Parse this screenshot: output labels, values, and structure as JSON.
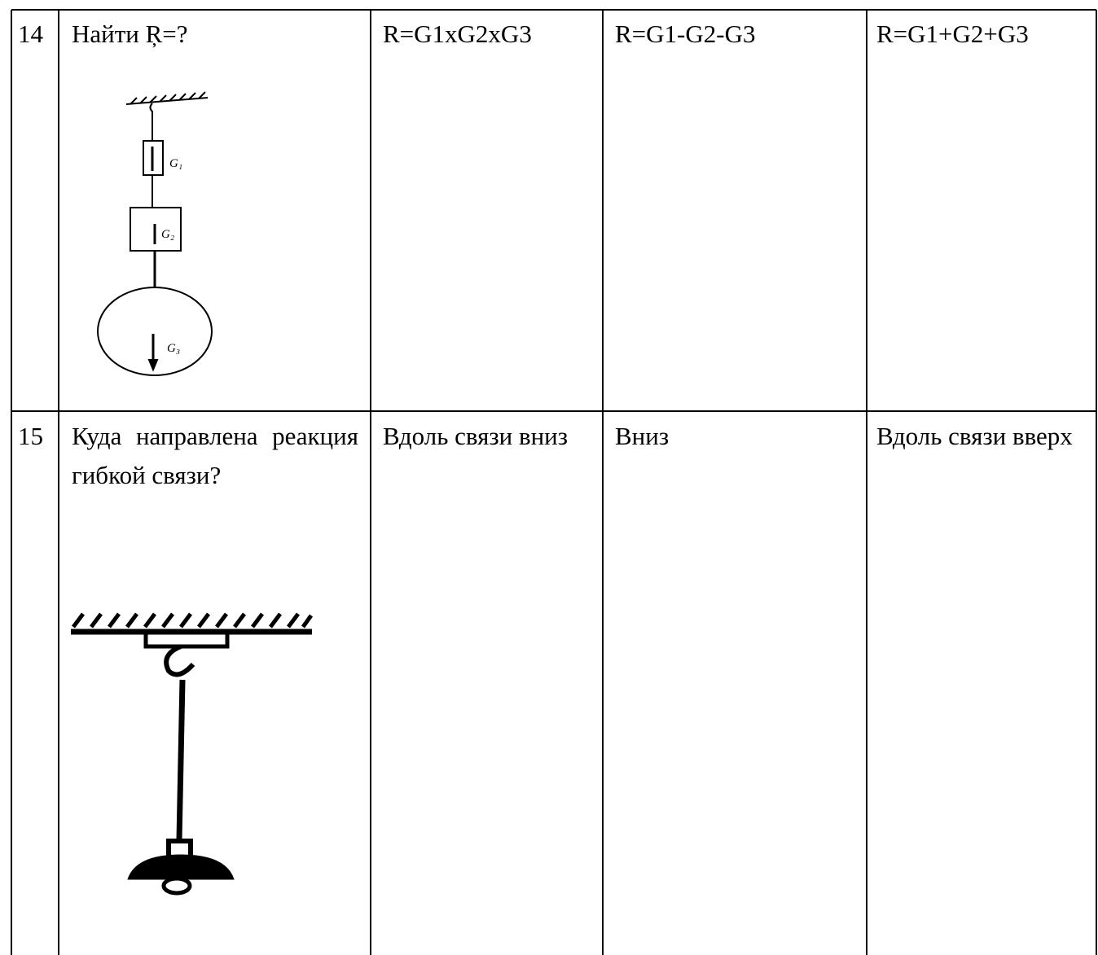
{
  "table": {
    "rows": [
      {
        "number": "14",
        "question": "Найти Ŗ=?",
        "figure_labels": [
          "G₁",
          "G₂",
          "G₃"
        ],
        "options": [
          "R=G1xG2xG3",
          "R=G1-G2-G3",
          "R=G1+G2+G3"
        ]
      },
      {
        "number": "15",
        "question": "Куда направлена реакция гибкой связи?",
        "options": [
          "Вдоль связи вниз",
          "Вниз",
          "Вдоль связи вверх"
        ]
      }
    ]
  }
}
